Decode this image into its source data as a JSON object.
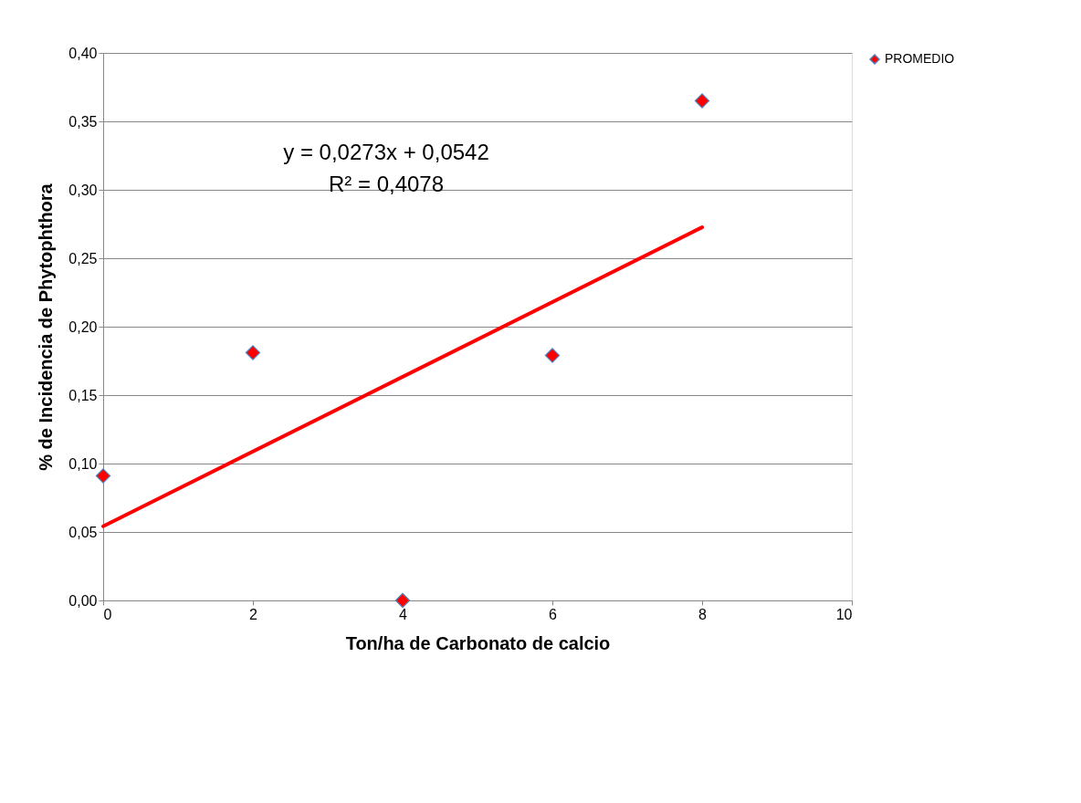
{
  "chart_data": {
    "type": "scatter",
    "xlabel": "Ton/ha de Carbonato de calcio",
    "ylabel": "% de Incidencia de Phytophthora",
    "series": [
      {
        "name": "PROMEDIO",
        "color": "#ff0000",
        "x": [
          0,
          2,
          4,
          6,
          8
        ],
        "values": [
          0.091,
          0.181,
          0.0,
          0.179,
          0.365
        ],
        "marker": "diamond"
      },
      {
        "type": "line",
        "color": "#ff0000",
        "x": [
          0,
          8
        ],
        "values": [
          0.0542,
          0.2726
        ],
        "line_style": "solid"
      }
    ],
    "xlim": [
      0,
      10
    ],
    "xticks": [
      0,
      2,
      4,
      6,
      8,
      10
    ],
    "ylim": [
      0,
      0.4
    ],
    "yticks": [
      {
        "value": 0,
        "label": "0,00"
      },
      {
        "value": 0.05,
        "label": "0,05"
      },
      {
        "value": 0.1,
        "label": "0,10"
      },
      {
        "value": 0.15,
        "label": "0,15"
      },
      {
        "value": 0.2,
        "label": "0,20"
      },
      {
        "value": 0.25,
        "label": "0,25"
      },
      {
        "value": 0.3,
        "label": "0,30"
      },
      {
        "value": 0.35,
        "label": "0,35"
      },
      {
        "value": 0.4,
        "label": "0,40"
      }
    ],
    "grid": "y",
    "legend": "right",
    "annotations": [
      "y = 0,0273x + 0,0542",
      "R² = 0,4078"
    ]
  }
}
